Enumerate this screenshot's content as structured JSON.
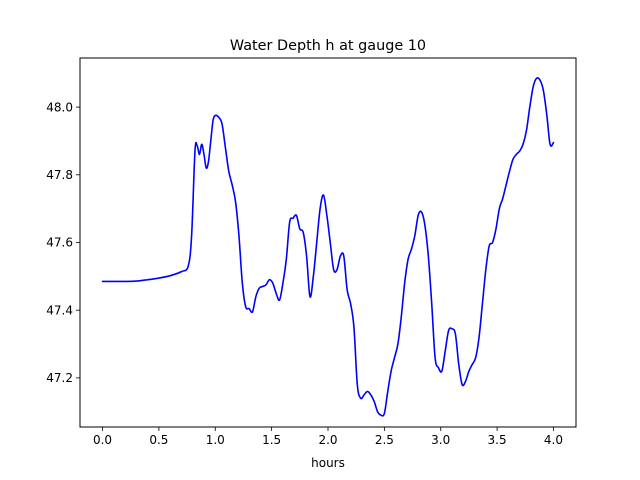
{
  "chart_data": {
    "type": "line",
    "title": "Water Depth h at gauge 10",
    "xlabel": "hours",
    "ylabel": "",
    "xlim": [
      -0.2,
      4.2
    ],
    "ylim": [
      47.055,
      48.145
    ],
    "xticks": [
      0.0,
      0.5,
      1.0,
      1.5,
      2.0,
      2.5,
      3.0,
      3.5,
      4.0
    ],
    "xtick_labels": [
      "0.0",
      "0.5",
      "1.0",
      "1.5",
      "2.0",
      "2.5",
      "3.0",
      "3.5",
      "4.0"
    ],
    "yticks": [
      47.2,
      47.4,
      47.6,
      47.8,
      48.0
    ],
    "ytick_labels": [
      "47.2",
      "47.4",
      "47.6",
      "47.8",
      "48.0"
    ],
    "grid": false,
    "legend": "none",
    "series": [
      {
        "color": "#0000ff",
        "x": [
          0.0,
          0.1,
          0.2,
          0.3,
          0.4,
          0.5,
          0.6,
          0.7,
          0.76,
          0.79,
          0.82,
          0.84,
          0.86,
          0.88,
          0.9,
          0.92,
          0.94,
          0.96,
          0.98,
          1.0,
          1.03,
          1.06,
          1.09,
          1.12,
          1.15,
          1.18,
          1.21,
          1.24,
          1.27,
          1.3,
          1.33,
          1.36,
          1.39,
          1.42,
          1.45,
          1.48,
          1.51,
          1.54,
          1.57,
          1.6,
          1.63,
          1.66,
          1.69,
          1.72,
          1.75,
          1.78,
          1.81,
          1.84,
          1.87,
          1.9,
          1.93,
          1.96,
          1.99,
          2.02,
          2.05,
          2.08,
          2.11,
          2.14,
          2.17,
          2.2,
          2.23,
          2.26,
          2.29,
          2.32,
          2.35,
          2.38,
          2.41,
          2.44,
          2.47,
          2.5,
          2.53,
          2.56,
          2.59,
          2.62,
          2.65,
          2.68,
          2.71,
          2.74,
          2.77,
          2.8,
          2.83,
          2.86,
          2.89,
          2.92,
          2.95,
          2.98,
          3.01,
          3.04,
          3.07,
          3.1,
          3.13,
          3.16,
          3.19,
          3.22,
          3.25,
          3.28,
          3.31,
          3.34,
          3.37,
          3.4,
          3.43,
          3.46,
          3.49,
          3.52,
          3.55,
          3.58,
          3.61,
          3.64,
          3.67,
          3.7,
          3.73,
          3.76,
          3.79,
          3.82,
          3.85,
          3.88,
          3.91,
          3.94,
          3.97,
          4.0
        ],
        "y": [
          47.485,
          47.485,
          47.485,
          47.486,
          47.49,
          47.495,
          47.502,
          47.514,
          47.53,
          47.62,
          47.87,
          47.885,
          47.86,
          47.89,
          47.86,
          47.82,
          47.84,
          47.9,
          47.96,
          47.975,
          47.97,
          47.95,
          47.88,
          47.81,
          47.77,
          47.72,
          47.62,
          47.48,
          47.41,
          47.405,
          47.395,
          47.44,
          47.465,
          47.47,
          47.475,
          47.49,
          47.48,
          47.45,
          47.43,
          47.48,
          47.55,
          47.66,
          47.672,
          47.68,
          47.64,
          47.63,
          47.56,
          47.44,
          47.5,
          47.6,
          47.7,
          47.74,
          47.68,
          47.6,
          47.52,
          47.52,
          47.56,
          47.56,
          47.46,
          47.42,
          47.35,
          47.18,
          47.14,
          47.15,
          47.16,
          47.15,
          47.13,
          47.1,
          47.09,
          47.095,
          47.16,
          47.22,
          47.26,
          47.3,
          47.38,
          47.48,
          47.55,
          47.58,
          47.62,
          47.68,
          47.69,
          47.65,
          47.56,
          47.42,
          47.26,
          47.23,
          47.22,
          47.28,
          47.34,
          47.345,
          47.33,
          47.24,
          47.18,
          47.19,
          47.22,
          47.24,
          47.26,
          47.32,
          47.42,
          47.52,
          47.59,
          47.6,
          47.64,
          47.7,
          47.73,
          47.77,
          47.81,
          47.845,
          47.86,
          47.87,
          47.89,
          47.93,
          48.0,
          48.06,
          48.085,
          48.08,
          48.05,
          47.98,
          47.89,
          47.895
        ]
      }
    ]
  }
}
